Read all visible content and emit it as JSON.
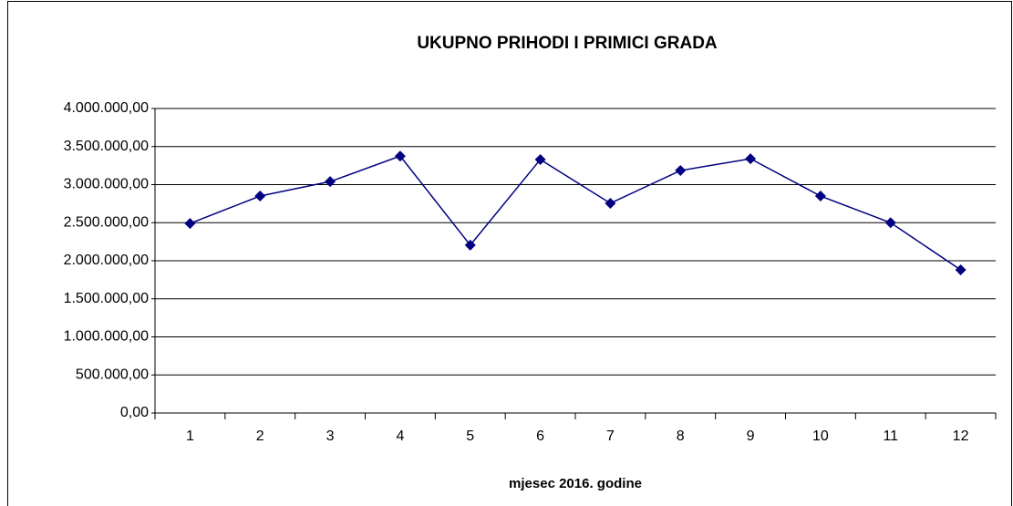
{
  "chart_data": {
    "type": "line",
    "title": "UKUPNO PRIHODI I PRIMICI GRADA",
    "x_label": "mjesec 2016. godine",
    "categories": [
      "1",
      "2",
      "3",
      "4",
      "5",
      "6",
      "7",
      "8",
      "9",
      "10",
      "11",
      "12"
    ],
    "series": [
      {
        "name": "UKUPNO PRIHODI I PRIMICI GRADA",
        "color": "#000080",
        "values": [
          2490000,
          2850000,
          3040000,
          3375000,
          2205000,
          3330000,
          2755000,
          3185000,
          3340000,
          2850000,
          2500000,
          1880000
        ]
      }
    ],
    "ylim": [
      0,
      4000000
    ],
    "yticks": [
      {
        "value": 0,
        "label": "0,00"
      },
      {
        "value": 500000,
        "label": "500.000,00"
      },
      {
        "value": 1000000,
        "label": "1.000.000,00"
      },
      {
        "value": 1500000,
        "label": "1.500.000,00"
      },
      {
        "value": 2000000,
        "label": "2.000.000,00"
      },
      {
        "value": 2500000,
        "label": "2.500.000,00"
      },
      {
        "value": 3000000,
        "label": "3.000.000,00"
      },
      {
        "value": 3500000,
        "label": "3.500.000,00"
      },
      {
        "value": 4000000,
        "label": "4.000.000,00"
      }
    ],
    "grid": true
  }
}
